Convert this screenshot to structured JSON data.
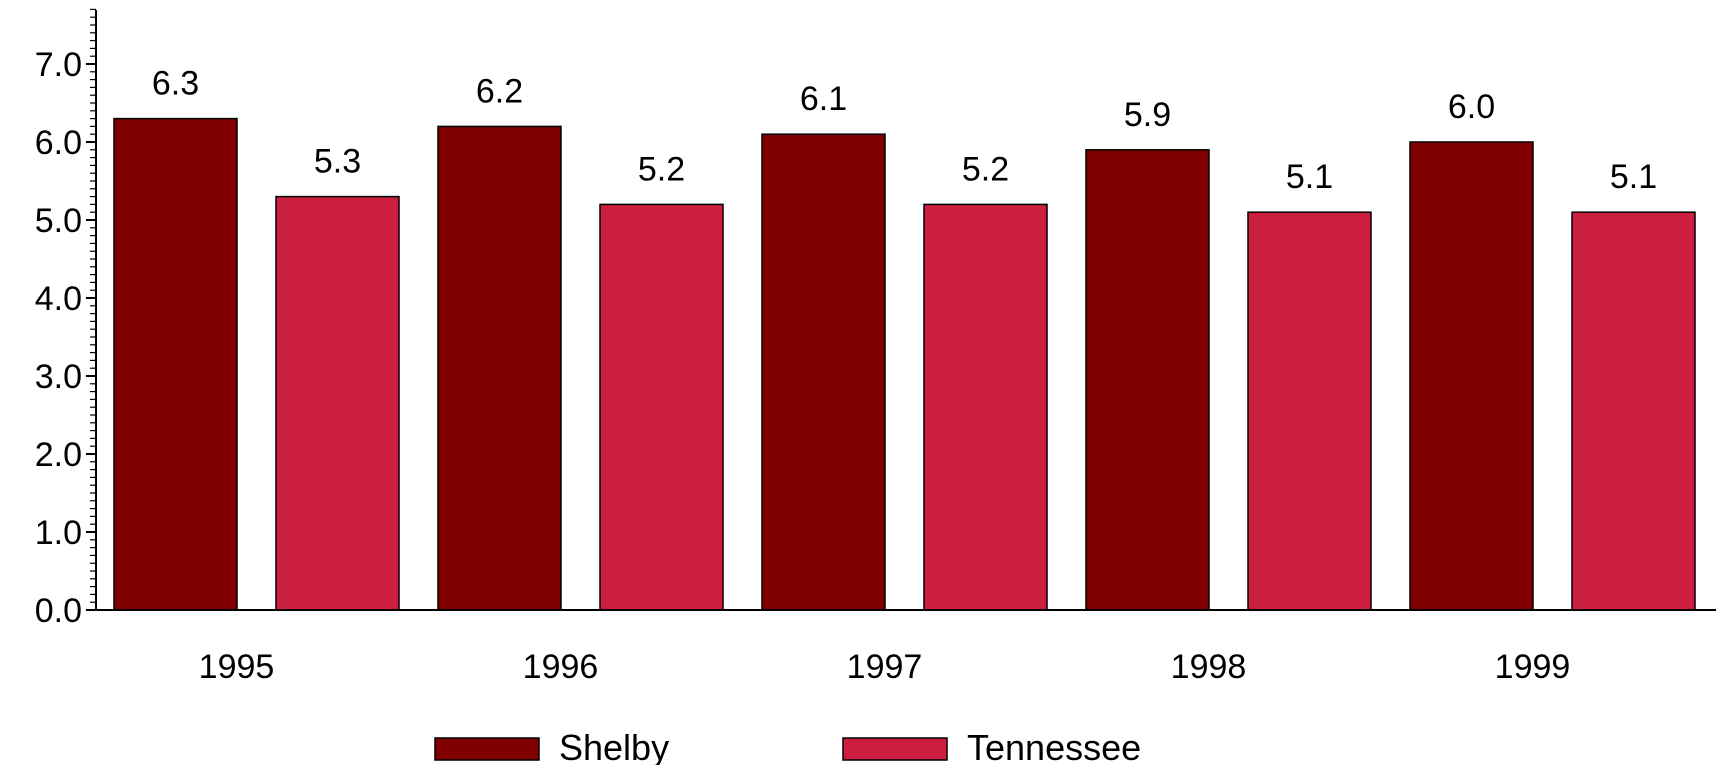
{
  "chart_data": {
    "type": "bar",
    "title": "",
    "xlabel": "",
    "ylabel": "",
    "categories": [
      "1995",
      "1996",
      "1997",
      "1998",
      "1999"
    ],
    "series": [
      {
        "name": "Shelby",
        "color": "#800000",
        "values": [
          6.3,
          6.2,
          6.1,
          5.9,
          6.0
        ]
      },
      {
        "name": "Tennessee",
        "color": "#CC1E3E",
        "values": [
          5.3,
          5.2,
          5.2,
          5.1,
          5.1
        ]
      }
    ],
    "ylim": [
      0,
      7.7
    ],
    "yticks": [
      "0.0",
      "1.0",
      "2.0",
      "3.0",
      "4.0",
      "5.0",
      "6.0",
      "7.0"
    ],
    "grid": false,
    "legend": {
      "position": "bottom"
    }
  }
}
